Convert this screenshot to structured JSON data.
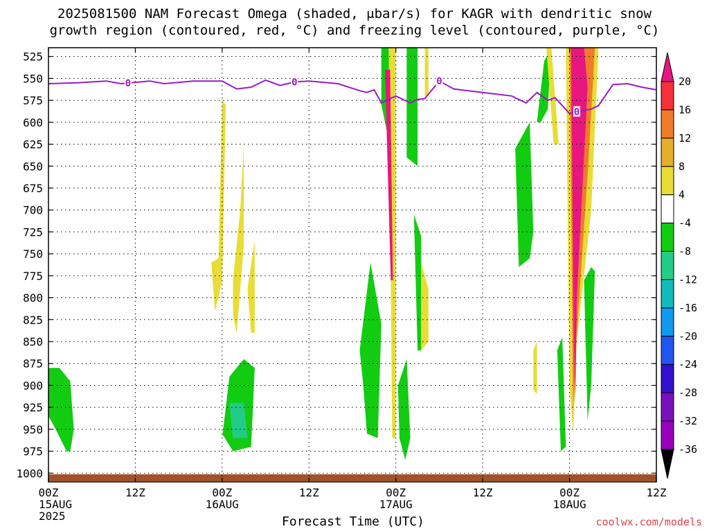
{
  "title_line1": "2025081500 NAM Forecast Omega (shaded, μbar/s) for KAGR with dendritic snow",
  "title_line2": "growth region (contoured, red, °C) and freezing level (contoured, purple, °C)",
  "xlabel": "Forecast Time (UTC)",
  "credit": "coolwx.com/models",
  "chart_data": {
    "type": "heatmap",
    "title": "2025081500 NAM Forecast Omega (shaded, μbar/s) for KAGR with dendritic snow growth region (contoured, red, °C) and freezing level (contoured, purple, °C)",
    "xlabel": "Forecast Time (UTC)",
    "x_ticks": [
      {
        "hour": 0,
        "line1": "00Z",
        "line2": "15AUG",
        "line3": "2025"
      },
      {
        "hour": 12,
        "line1": "12Z",
        "line2": "",
        "line3": ""
      },
      {
        "hour": 24,
        "line1": "00Z",
        "line2": "16AUG",
        "line3": ""
      },
      {
        "hour": 36,
        "line1": "12Z",
        "line2": "",
        "line3": ""
      },
      {
        "hour": 48,
        "line1": "00Z",
        "line2": "17AUG",
        "line3": ""
      },
      {
        "hour": 60,
        "line1": "12Z",
        "line2": "",
        "line3": ""
      },
      {
        "hour": 72,
        "line1": "00Z",
        "line2": "18AUG",
        "line3": ""
      },
      {
        "hour": 84,
        "line1": "12Z",
        "line2": "",
        "line3": ""
      }
    ],
    "xlim": [
      0,
      84
    ],
    "y_ticks": [
      525,
      550,
      575,
      600,
      625,
      650,
      675,
      700,
      725,
      750,
      775,
      800,
      825,
      850,
      875,
      900,
      925,
      950,
      975,
      1000
    ],
    "ylim": [
      515,
      1010
    ],
    "grid": true,
    "colorbar": {
      "labels": [
        "20",
        "16",
        "12",
        "8",
        "4",
        "-4",
        "-8",
        "-12",
        "-16",
        "-20",
        "-24",
        "-28",
        "-32",
        "-36"
      ],
      "bins": [
        "#e8177f",
        "#f4303a",
        "#f07b2a",
        "#e5ae2c",
        "#e8dd34",
        "#ffffff",
        "#11cc11",
        "#22cc88",
        "#11bbbb",
        "#1199ee",
        "#2255ee",
        "#3311cc",
        "#7711bb",
        "#9900bb",
        "#aaaaaa"
      ]
    },
    "freezing_level": {
      "label": "0",
      "color": "#9b19c8",
      "hours": [
        0,
        4,
        8,
        10,
        14,
        16,
        20,
        24,
        26,
        28,
        30,
        32,
        34,
        36,
        40,
        43,
        44,
        45,
        46,
        48,
        50,
        51,
        52,
        54,
        56,
        58,
        60,
        64,
        66,
        67.5,
        69,
        70,
        72,
        73,
        75,
        76,
        78,
        80,
        82,
        84
      ],
      "pressure": [
        556,
        555,
        553,
        556,
        553,
        556,
        553,
        553,
        562,
        560,
        552,
        558,
        554,
        553,
        556,
        564,
        566,
        563,
        578,
        570,
        578,
        574,
        573,
        553,
        562,
        564,
        566,
        570,
        578,
        566,
        575,
        572,
        590,
        588,
        585,
        581,
        557,
        556,
        560,
        563
      ]
    },
    "omega_regions": [
      {
        "value_bin": "-8",
        "color": "#11cc11",
        "hours": [
          0,
          1.5,
          3,
          3.5,
          3,
          2.5,
          1,
          0
        ],
        "pressure": [
          880,
          880,
          895,
          950,
          975,
          975,
          950,
          935
        ]
      },
      {
        "value_bin": "-8",
        "color": "#11cc11",
        "hours": [
          24,
          25,
          27,
          28.5,
          28,
          25.5,
          24
        ],
        "pressure": [
          960,
          890,
          870,
          880,
          970,
          975,
          955
        ]
      },
      {
        "value_bin": "-12",
        "color": "#22cc88",
        "hours": [
          25,
          27,
          27.5,
          25.5
        ],
        "pressure": [
          920,
          920,
          960,
          960
        ]
      },
      {
        "value_bin": "4",
        "color": "#e8dd34",
        "hours": [
          22.5,
          23.5,
          24,
          24.5,
          24,
          23.5,
          23
        ],
        "pressure": [
          760,
          755,
          575,
          580,
          780,
          800,
          815
        ]
      },
      {
        "value_bin": "4",
        "color": "#e8dd34",
        "hours": [
          25.5,
          26.5,
          27,
          27,
          26,
          25.5
        ],
        "pressure": [
          780,
          700,
          625,
          740,
          840,
          820
        ]
      },
      {
        "value_bin": "4",
        "color": "#e8dd34",
        "hours": [
          27.5,
          28.5,
          28.5,
          28
        ],
        "pressure": [
          790,
          735,
          840,
          840
        ]
      },
      {
        "value_bin": "-8",
        "color": "#11cc11",
        "hours": [
          43,
          44.5,
          46,
          45.5,
          44,
          43.5
        ],
        "pressure": [
          860,
          760,
          830,
          960,
          955,
          900
        ]
      },
      {
        "value_bin": "-8",
        "color": "#11cc11",
        "hours": [
          46,
          47,
          47.5,
          47,
          46
        ],
        "pressure": [
          515,
          515,
          640,
          620,
          580
        ]
      },
      {
        "value_bin": "4",
        "color": "#e8dd34",
        "hours": [
          47,
          48,
          48,
          47.5
        ],
        "pressure": [
          515,
          515,
          960,
          960
        ]
      },
      {
        "value_bin": "20",
        "color": "#e8177f",
        "hours": [
          46.5,
          47.2,
          47.6,
          47.3
        ],
        "pressure": [
          540,
          540,
          780,
          780
        ]
      },
      {
        "value_bin": "-8",
        "color": "#11cc11",
        "hours": [
          49.5,
          51,
          51,
          49.5
        ],
        "pressure": [
          515,
          515,
          650,
          640
        ]
      },
      {
        "value_bin": "-8",
        "color": "#11cc11",
        "hours": [
          48.3,
          49.5,
          50,
          49.3,
          48.5
        ],
        "pressure": [
          900,
          870,
          960,
          985,
          960
        ]
      },
      {
        "value_bin": "4",
        "color": "#e8dd34",
        "hours": [
          52,
          52.5,
          52.5,
          52
        ],
        "pressure": [
          515,
          515,
          570,
          570
        ]
      },
      {
        "value_bin": "-8",
        "color": "#11cc11",
        "hours": [
          50.5,
          51.5,
          51.5,
          51
        ],
        "pressure": [
          705,
          730,
          860,
          860
        ]
      },
      {
        "value_bin": "4",
        "color": "#e8dd34",
        "hours": [
          51.5,
          52.5,
          52.5,
          51.5
        ],
        "pressure": [
          760,
          790,
          850,
          860
        ]
      },
      {
        "value_bin": "-8",
        "color": "#11cc11",
        "hours": [
          64.5,
          66.5,
          67,
          66.5,
          65
        ],
        "pressure": [
          630,
          600,
          725,
          755,
          765
        ]
      },
      {
        "value_bin": "-8",
        "color": "#11cc11",
        "hours": [
          67.5,
          68.5,
          69.5,
          69,
          68
        ],
        "pressure": [
          600,
          530,
          515,
          585,
          600
        ]
      },
      {
        "value_bin": "4",
        "color": "#e8dd34",
        "hours": [
          68.8,
          69.5,
          70.5,
          69.8
        ],
        "pressure": [
          515,
          515,
          625,
          625
        ]
      },
      {
        "value_bin": "4",
        "color": "#e8dd34",
        "hours": [
          67,
          67.5,
          67.5,
          67
        ],
        "pressure": [
          860,
          850,
          910,
          905
        ]
      },
      {
        "value_bin": "-8",
        "color": "#11cc11",
        "hours": [
          70.3,
          71,
          71.5,
          70.8
        ],
        "pressure": [
          860,
          845,
          970,
          975
        ]
      },
      {
        "value_bin": "4",
        "color": "#e8dd34",
        "hours": [
          71.5,
          76,
          75,
          73,
          72.5,
          72
        ],
        "pressure": [
          515,
          515,
          700,
          850,
          955,
          900
        ]
      },
      {
        "value_bin": "12",
        "color": "#f07b2a",
        "hours": [
          72,
          75.5,
          74.5,
          73,
          72.5
        ],
        "pressure": [
          515,
          515,
          660,
          840,
          930
        ]
      },
      {
        "value_bin": "20",
        "color": "#e8177f",
        "hours": [
          72.2,
          74,
          74.5,
          73,
          72.8,
          72.6
        ],
        "pressure": [
          515,
          515,
          560,
          800,
          920,
          850
        ]
      },
      {
        "value_bin": "-8",
        "color": "#11cc11",
        "hours": [
          74,
          75,
          75.5,
          75,
          74.5
        ],
        "pressure": [
          780,
          765,
          770,
          900,
          940
        ]
      }
    ]
  }
}
